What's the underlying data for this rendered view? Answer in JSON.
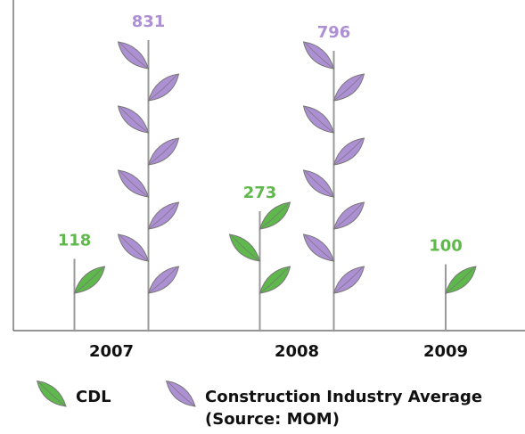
{
  "chart_data": {
    "type": "bar",
    "categories": [
      "2007",
      "2008",
      "2009"
    ],
    "series": [
      {
        "name": "CDL",
        "color": "#5fb84c",
        "values": [
          118,
          273,
          100
        ]
      },
      {
        "name": "Construction Industry Average (Source: MOM)",
        "color": "#ad8fd4",
        "values": [
          831,
          796,
          null
        ]
      }
    ]
  }
}
